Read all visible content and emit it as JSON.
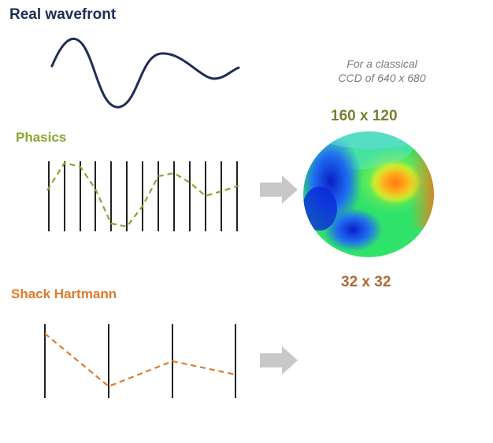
{
  "real_wavefront": {
    "title": "Real wavefront"
  },
  "phasics": {
    "title": "Phasics",
    "resolution": "160 x 120"
  },
  "shack_hartmann": {
    "title": "Shack Hartmann",
    "resolution": "32 x 32"
  },
  "ccd_note": {
    "line1": "For a classical",
    "line2": "CCD of 640 x 680"
  },
  "colors": {
    "wavefront": "#1f2d55",
    "phasics": "#8aa62b",
    "shack": "#e07a2a",
    "arrow": "#c8c8c8"
  }
}
